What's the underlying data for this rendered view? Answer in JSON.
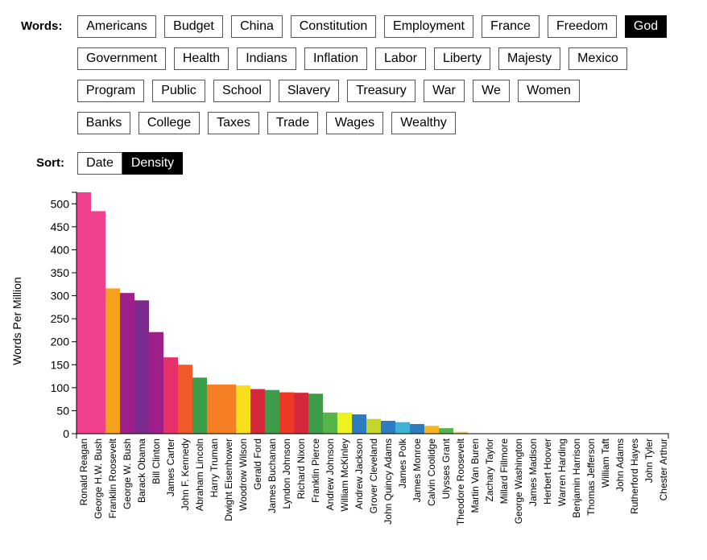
{
  "words_label": "Words:",
  "sort_label": "Sort:",
  "words": [
    [
      "Americans",
      "Budget",
      "China",
      "Constitution",
      "Employment",
      "France",
      "Freedom",
      "God"
    ],
    [
      "Government",
      "Health",
      "Indians",
      "Inflation",
      "Labor",
      "Liberty",
      "Majesty",
      "Mexico"
    ],
    [
      "Program",
      "Public",
      "School",
      "Slavery",
      "Treasury",
      "War",
      "We",
      "Women"
    ],
    [
      "Banks",
      "College",
      "Taxes",
      "Trade",
      "Wages",
      "Wealthy"
    ]
  ],
  "selected_word": "God",
  "sort_options": [
    "Date",
    "Density"
  ],
  "selected_sort": "Density",
  "chart_data": {
    "type": "bar",
    "ylabel": "Words Per Million",
    "ylim": [
      0,
      525
    ],
    "yticks": [
      0,
      50,
      100,
      150,
      200,
      250,
      300,
      350,
      400,
      450,
      500
    ],
    "categories": [
      "Ronald Reagan",
      "George H.W. Bush",
      "Franklin Roosevelt",
      "George W. Bush",
      "Barack Obama",
      "Bill Clinton",
      "James Carter",
      "John F. Kennedy",
      "Abraham Lincoln",
      "Harry Truman",
      "Dwight Eisenhower",
      "Woodrow Wilson",
      "Gerald Ford",
      "James Buchanan",
      "Lyndon Johnson",
      "Richard Nixon",
      "Franklin Pierce",
      "Andrew Johnson",
      "William McKinley",
      "Andrew Jackson",
      "Grover Cleveland",
      "John Quincy Adams",
      "James Polk",
      "James Monroe",
      "Calvin Coolidge",
      "Ulysses Grant",
      "Theodore Roosevelt",
      "Martin Van Buren",
      "Zachary Taylor",
      "Millard Fillmore",
      "George Washington",
      "James Madison",
      "Herbert Hoover",
      "Warren Harding",
      "Benjamin Harrison",
      "Thomas Jefferson",
      "William Taft",
      "John Adams",
      "Rutherford Hayes",
      "John Tyler",
      "Chester Arthur"
    ],
    "values": [
      525,
      484,
      316,
      306,
      290,
      221,
      166,
      150,
      122,
      107,
      107,
      105,
      97,
      95,
      90,
      89,
      87,
      46,
      46,
      42,
      32,
      28,
      25,
      21,
      17,
      12,
      4,
      0,
      0,
      0,
      0,
      0,
      0,
      0,
      0,
      0,
      0,
      0,
      0,
      0,
      0
    ],
    "colors": [
      "#f0418e",
      "#f0418e",
      "#f5a11e",
      "#a0208b",
      "#7d2a8f",
      "#a0208b",
      "#e8316a",
      "#f05a28",
      "#3c9c48",
      "#f47f25",
      "#f47f25",
      "#fbde1b",
      "#d4283c",
      "#3c9c48",
      "#ee3a24",
      "#d4283c",
      "#3c9c48",
      "#56b548",
      "#eef21f",
      "#2e7cc0",
      "#c2d62e",
      "#2e7cc0",
      "#3fb3d6",
      "#2e7cc0",
      "#f5b51e",
      "#56b548",
      "#f7c94b",
      "#cccccc",
      "#cccccc",
      "#cccccc",
      "#cccccc",
      "#cccccc",
      "#cccccc",
      "#cccccc",
      "#cccccc",
      "#cccccc",
      "#cccccc",
      "#cccccc",
      "#cccccc",
      "#cccccc",
      "#cccccc"
    ]
  }
}
